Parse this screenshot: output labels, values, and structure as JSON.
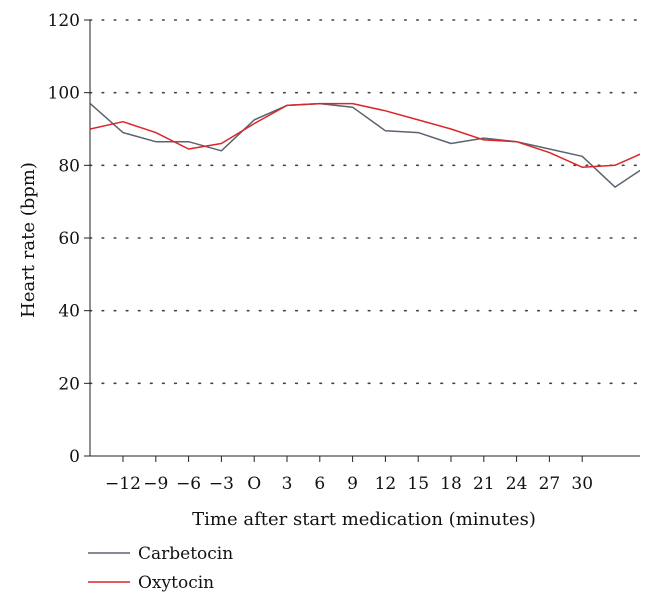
{
  "chart_data": {
    "type": "line",
    "xlabel": "Time after start medication (minutes)",
    "ylabel": "Heart rate (bpm)",
    "ylim": [
      0,
      120
    ],
    "xlim": [
      -16,
      35
    ],
    "yticks": [
      0,
      20,
      40,
      60,
      80,
      100,
      120
    ],
    "xticks": [
      -12,
      -9,
      -6,
      -3,
      0,
      3,
      6,
      9,
      12,
      15,
      18,
      21,
      24,
      27,
      30
    ],
    "xtick_labels": [
      "−12",
      "−9",
      "−6",
      "−3",
      "O",
      "3",
      "6",
      "9",
      "12",
      "15",
      "18",
      "21",
      "24",
      "27",
      "30"
    ],
    "grid": "horizontal-dotted",
    "legend_position": "bottom-left",
    "series": [
      {
        "name": "Carbetocin",
        "color": "#5a6470",
        "x": [
          -15,
          -12,
          -9,
          -6,
          -3,
          0,
          3,
          6,
          9,
          12,
          15,
          18,
          21,
          24,
          27,
          30,
          33,
          36
        ],
        "values": [
          97,
          89,
          86.5,
          86.5,
          84,
          92.5,
          96.5,
          97,
          96,
          89.5,
          89,
          86,
          87.5,
          86.5,
          84.5,
          82.5,
          74,
          80
        ]
      },
      {
        "name": "Oxytocin",
        "color": "#d9262a",
        "x": [
          -15,
          -12,
          -9,
          -6,
          -3,
          0,
          3,
          6,
          9,
          12,
          15,
          18,
          21,
          24,
          27,
          30,
          33,
          36
        ],
        "values": [
          90,
          92,
          89,
          84.5,
          86,
          91.5,
          96.5,
          97,
          97,
          95,
          92.5,
          90,
          87,
          86.5,
          83.5,
          79.5,
          80,
          84
        ]
      }
    ]
  }
}
